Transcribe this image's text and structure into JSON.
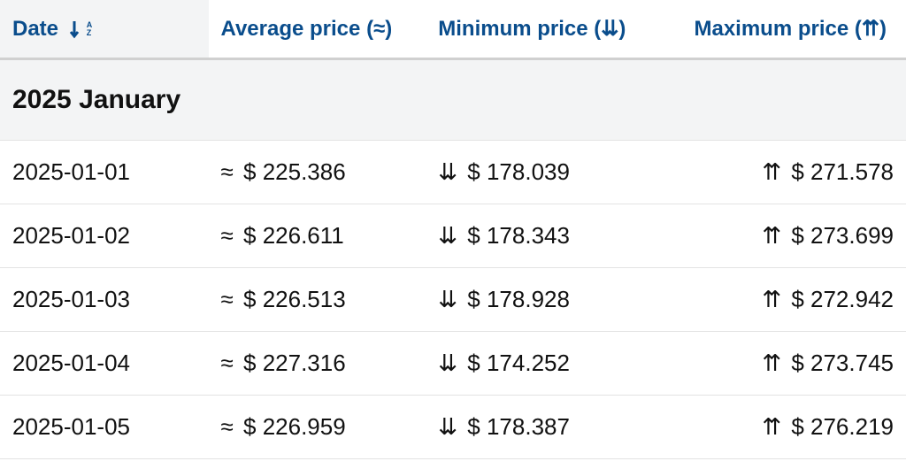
{
  "colors": {
    "header_text": "#0a4d8c",
    "body_text": "#111111",
    "header_bg_date": "#f3f4f5",
    "section_bg": "#f3f4f5",
    "row_border": "#e3e3e3",
    "header_border": "#d0d0d0",
    "page_bg": "#ffffff"
  },
  "symbols": {
    "approx": "≈",
    "down": "⇊",
    "up": "⇈",
    "currency": "$"
  },
  "columns": {
    "date": {
      "label": "Date",
      "sort_icon": "az-desc"
    },
    "avg": {
      "label": "Average price",
      "suffix_symbol": "approx"
    },
    "min": {
      "label": "Minimum price",
      "suffix_symbol": "down"
    },
    "max": {
      "label": "Maximum price",
      "suffix_symbol": "up"
    }
  },
  "section": {
    "title": "2025 January"
  },
  "rows": [
    {
      "date": "2025-01-01",
      "avg": "225.386",
      "min": "178.039",
      "max": "271.578"
    },
    {
      "date": "2025-01-02",
      "avg": "226.611",
      "min": "178.343",
      "max": "273.699"
    },
    {
      "date": "2025-01-03",
      "avg": "226.513",
      "min": "178.928",
      "max": "272.942"
    },
    {
      "date": "2025-01-04",
      "avg": "227.316",
      "min": "174.252",
      "max": "273.745"
    },
    {
      "date": "2025-01-05",
      "avg": "226.959",
      "min": "178.387",
      "max": "276.219"
    }
  ],
  "typography": {
    "header_fontsize": 24,
    "section_fontsize": 30,
    "cell_fontsize": 26
  }
}
